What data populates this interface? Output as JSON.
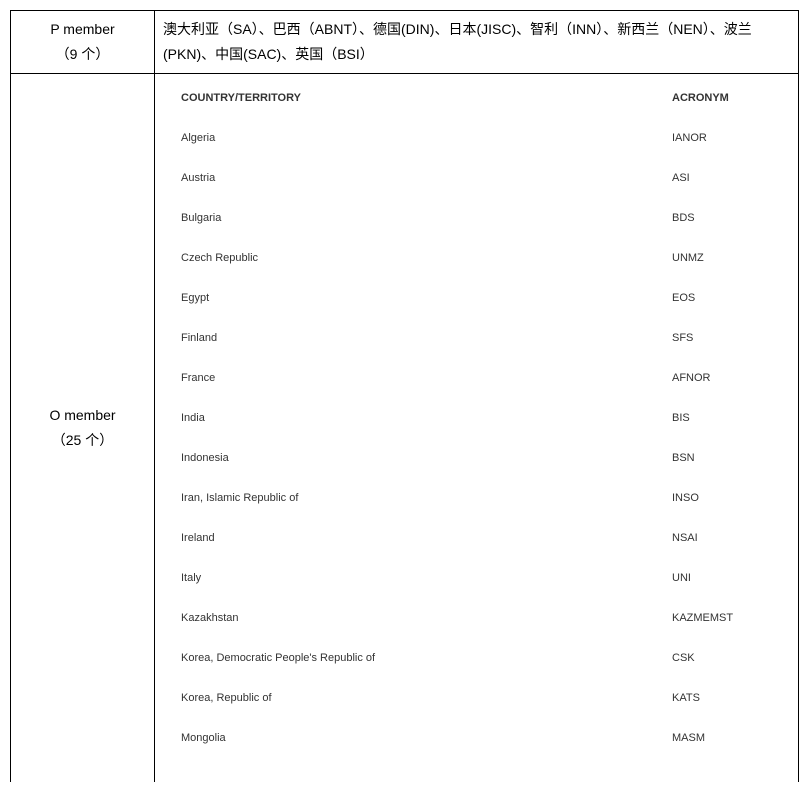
{
  "pmember": {
    "label_line1": "P member",
    "label_line2": "（9 个）",
    "content": "澳大利亚（SA）、巴西（ABNT）、德国(DIN)、日本(JISC)、智利（INN）、新西兰（NEN）、波兰(PKN)、中国(SAC)、英国（BSI）"
  },
  "omember": {
    "label_line1": "O member",
    "label_line2": "（25 个）",
    "header_country": "COUNTRY/TERRITORY",
    "header_acronym": "ACRONYM",
    "rows": [
      {
        "country": "Algeria",
        "acronym": "IANOR"
      },
      {
        "country": "Austria",
        "acronym": "ASI"
      },
      {
        "country": "Bulgaria",
        "acronym": "BDS"
      },
      {
        "country": "Czech Republic",
        "acronym": "UNMZ"
      },
      {
        "country": "Egypt",
        "acronym": "EOS"
      },
      {
        "country": "Finland",
        "acronym": "SFS"
      },
      {
        "country": "France",
        "acronym": "AFNOR"
      },
      {
        "country": "India",
        "acronym": "BIS"
      },
      {
        "country": "Indonesia",
        "acronym": "BSN"
      },
      {
        "country": "Iran, Islamic Republic of",
        "acronym": "INSO"
      },
      {
        "country": "Ireland",
        "acronym": "NSAI"
      },
      {
        "country": "Italy",
        "acronym": "UNI"
      },
      {
        "country": "Kazakhstan",
        "acronym": "KAZMEMST"
      },
      {
        "country": "Korea, Democratic People's Republic of",
        "acronym": "CSK"
      },
      {
        "country": "Korea, Republic of",
        "acronym": "KATS"
      },
      {
        "country": "Mongolia",
        "acronym": "MASM"
      }
    ]
  }
}
